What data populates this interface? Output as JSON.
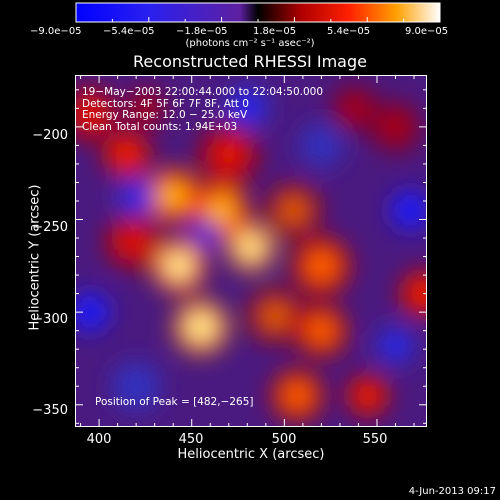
{
  "chart_data": {
    "type": "heatmap",
    "title": "Reconstructed RHESSI Image",
    "xlabel": "Heliocentric X (arcsec)",
    "ylabel": "Heliocentric Y (arcsec)",
    "xlim": [
      387,
      577
    ],
    "ylim": [
      -362,
      -172
    ],
    "xticks": [
      400,
      450,
      500,
      550
    ],
    "xtick_labels": [
      "400",
      "450",
      "500",
      "550"
    ],
    "yticks": [
      -200,
      -250,
      -300,
      -350
    ],
    "ytick_labels": [
      "−200",
      "−250",
      "−300",
      "−350"
    ],
    "colorbar": {
      "range": [
        -9e-05,
        9e-05
      ],
      "tick_labels": [
        "−9.0e−05",
        "−5.4e−05",
        "−1.8e−05",
        "1.8e−05",
        "5.4e−05",
        "9.0e−05"
      ],
      "units": "(photons cm⁻² s⁻¹ asec⁻²)"
    },
    "annotations": [
      "19−May−2003 22:00:44.000 to 22:04:50.000",
      "Detectors: 4F 5F 6F 7F 8F, Att 0",
      "Energy Range: 12.0 − 25.0 keV",
      "Clean     Total counts: 1.94E+03"
    ],
    "peak_label": "Position of Peak = [482,−265]",
    "peak": [
      482,
      -265
    ],
    "blobs": [
      {
        "x": 470,
        "y": -215,
        "v": 0.55,
        "s": 10
      },
      {
        "x": 440,
        "y": -237,
        "v": 0.85,
        "s": 9
      },
      {
        "x": 466,
        "y": -245,
        "v": 0.85,
        "s": 9
      },
      {
        "x": 482,
        "y": -265,
        "v": 1.0,
        "s": 8
      },
      {
        "x": 443,
        "y": -275,
        "v": 0.9,
        "s": 9
      },
      {
        "x": 418,
        "y": -262,
        "v": 0.55,
        "s": 9
      },
      {
        "x": 505,
        "y": -245,
        "v": 0.6,
        "s": 9
      },
      {
        "x": 520,
        "y": -275,
        "v": 0.65,
        "s": 10
      },
      {
        "x": 455,
        "y": -308,
        "v": 0.95,
        "s": 9
      },
      {
        "x": 495,
        "y": -302,
        "v": 0.6,
        "s": 9
      },
      {
        "x": 520,
        "y": -310,
        "v": 0.7,
        "s": 9
      },
      {
        "x": 507,
        "y": -345,
        "v": 0.65,
        "s": 9
      },
      {
        "x": 575,
        "y": -290,
        "v": 0.45,
        "s": 10
      },
      {
        "x": 560,
        "y": -200,
        "v": 0.35,
        "s": 11
      },
      {
        "x": 538,
        "y": -190,
        "v": 0.4,
        "s": 10
      },
      {
        "x": 415,
        "y": -215,
        "v": 0.45,
        "s": 10
      },
      {
        "x": 395,
        "y": -193,
        "v": 0.5,
        "s": 9
      },
      {
        "x": 425,
        "y": -190,
        "v": 0.35,
        "s": 9
      },
      {
        "x": 545,
        "y": -345,
        "v": 0.45,
        "s": 9
      },
      {
        "x": 457,
        "y": -258,
        "v": -0.5,
        "s": 6
      },
      {
        "x": 420,
        "y": -238,
        "v": -0.55,
        "s": 8
      },
      {
        "x": 568,
        "y": -245,
        "v": -0.65,
        "s": 8
      },
      {
        "x": 395,
        "y": -300,
        "v": -0.7,
        "s": 8
      },
      {
        "x": 560,
        "y": -318,
        "v": -0.55,
        "s": 8
      },
      {
        "x": 480,
        "y": -190,
        "v": -0.5,
        "s": 9
      },
      {
        "x": 520,
        "y": -210,
        "v": -0.4,
        "s": 9
      },
      {
        "x": 420,
        "y": -340,
        "v": -0.35,
        "s": 10
      }
    ]
  }
}
